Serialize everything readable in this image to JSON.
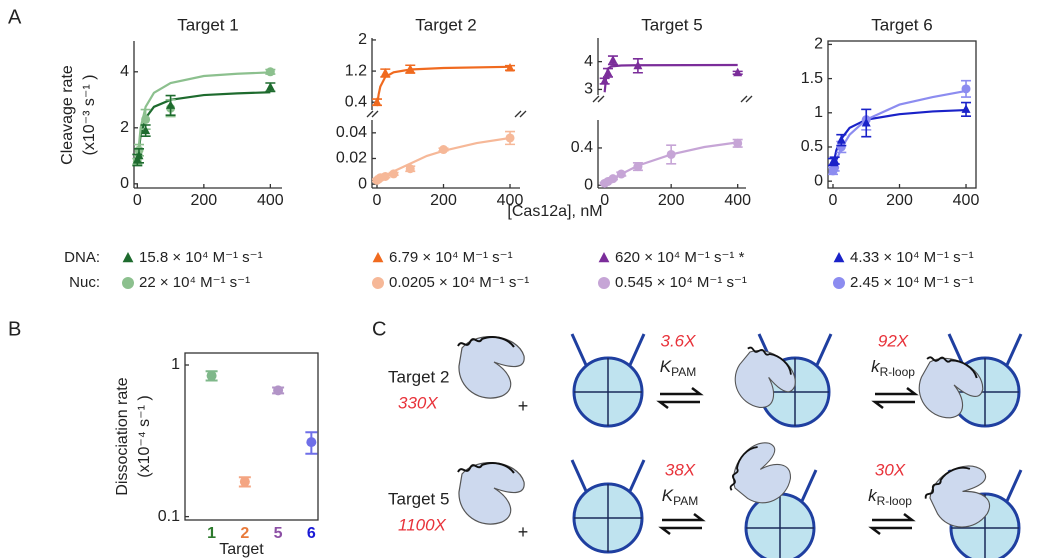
{
  "panel_a": {
    "letter": "A",
    "y_label": [
      "Cleavage rate",
      "(x10⁻³ s⁻¹ )"
    ],
    "x_label": "[Cas12a], nM"
  },
  "chart_data": [
    {
      "type": "scatter",
      "title": "Target 1",
      "xlim": [
        -10,
        435
      ],
      "ylim": [
        -0.15,
        5.1
      ],
      "xticks": [
        0,
        200,
        400
      ],
      "yticks": [
        0,
        2,
        4
      ],
      "series": [
        {
          "color": "#1e6b2e",
          "line": true,
          "x": [
            0,
            10,
            25,
            50,
            100,
            200,
            300,
            400
          ],
          "values": [
            0.7,
            1.75,
            2.35,
            2.75,
            3.0,
            3.17,
            3.23,
            3.27
          ]
        },
        {
          "color": "#8cc08e",
          "line": true,
          "x": [
            0,
            10,
            25,
            50,
            100,
            200,
            300,
            400
          ],
          "values": [
            0.8,
            2.0,
            2.75,
            3.25,
            3.6,
            3.85,
            3.93,
            3.98
          ]
        },
        {
          "color": "#8cc08e",
          "marker": "circle",
          "x": [
            0,
            5,
            25,
            100,
            400
          ],
          "values": [
            0.8,
            1.2,
            2.3,
            2.7,
            4.0
          ],
          "errors": [
            0.1,
            0.2,
            0.35,
            0.3,
            0.08
          ]
        },
        {
          "color": "#1e6b2e",
          "marker": "triangle",
          "x": [
            0,
            5,
            25,
            100,
            400
          ],
          "values": [
            0.85,
            1.0,
            1.9,
            2.8,
            3.45
          ],
          "errors": [
            0.2,
            0.25,
            0.2,
            0.35,
            0.15
          ]
        }
      ]
    },
    {
      "type": "scatter",
      "title": "Target 2",
      "xlim": [
        -15,
        430
      ],
      "ylim": [
        0.2,
        2.05
      ],
      "yticks": [
        0.4,
        1.2,
        2
      ],
      "series": [
        {
          "color": "#f06a1f",
          "line": true,
          "x": [
            0,
            5,
            10,
            25,
            50,
            100,
            200,
            400
          ],
          "values": [
            0.3,
            0.6,
            0.8,
            1.05,
            1.17,
            1.24,
            1.28,
            1.31
          ]
        },
        {
          "color": "#f06a1f",
          "marker": "triangle",
          "x": [
            0,
            25,
            100,
            400
          ],
          "values": [
            0.4,
            1.15,
            1.25,
            1.28
          ],
          "errors": [
            0.08,
            0.1,
            0.1,
            0.06
          ]
        }
      ]
    },
    {
      "type": "scatter",
      "xlim": [
        -15,
        430
      ],
      "ylim": [
        -0.003,
        0.05
      ],
      "xticks": [
        0,
        200,
        400
      ],
      "yticks": [
        0,
        0.02,
        0.04
      ],
      "series": [
        {
          "color": "#f6b898",
          "line": true,
          "x": [
            0,
            50,
            100,
            150,
            200,
            300,
            400
          ],
          "values": [
            0.003,
            0.01,
            0.016,
            0.022,
            0.026,
            0.032,
            0.036
          ]
        },
        {
          "color": "#f6b898",
          "marker": "circle",
          "x": [
            0,
            5,
            10,
            25,
            50,
            100,
            200,
            400
          ],
          "values": [
            0.003,
            0.004,
            0.005,
            0.006,
            0.008,
            0.012,
            0.027,
            0.036
          ],
          "errors": [
            0.001,
            0.001,
            0.001,
            0.001,
            0.001,
            0.002,
            0.001,
            0.005
          ]
        }
      ]
    },
    {
      "type": "scatter",
      "title": "Target 5",
      "xlim": [
        -20,
        425
      ],
      "ylim": [
        2.8,
        4.85
      ],
      "yticks": [
        3,
        4
      ],
      "series": [
        {
          "color": "#7b2d9a",
          "line": true,
          "x": [
            0,
            5,
            10,
            20,
            50,
            100,
            400
          ],
          "values": [
            2.9,
            3.5,
            3.75,
            3.83,
            3.86,
            3.87,
            3.88
          ]
        },
        {
          "color": "#7b2d9a",
          "marker": "triangle",
          "x": [
            0,
            10,
            25,
            100,
            400
          ],
          "values": [
            3.3,
            3.6,
            4.05,
            3.85,
            3.6
          ],
          "errors": [
            0.1,
            0.15,
            0.15,
            0.25,
            0.05
          ]
        }
      ]
    },
    {
      "type": "scatter",
      "xlim": [
        -20,
        425
      ],
      "ylim": [
        -0.03,
        0.7
      ],
      "xticks": [
        0,
        200,
        400
      ],
      "yticks": [
        0,
        0.4
      ],
      "series": [
        {
          "color": "#c6a5d6",
          "line": true,
          "x": [
            0,
            50,
            100,
            200,
            300,
            400
          ],
          "values": [
            0.01,
            0.12,
            0.21,
            0.33,
            0.41,
            0.46
          ]
        },
        {
          "color": "#c6a5d6",
          "marker": "circle",
          "x": [
            0,
            10,
            25,
            50,
            100,
            200,
            400
          ],
          "values": [
            0.02,
            0.04,
            0.07,
            0.12,
            0.2,
            0.33,
            0.45
          ],
          "errors": [
            0.01,
            0.01,
            0.01,
            0.02,
            0.04,
            0.1,
            0.04
          ]
        }
      ]
    },
    {
      "type": "scatter",
      "title": "Target 6",
      "xlim": [
        -15,
        430
      ],
      "ylim": [
        -0.1,
        2.05
      ],
      "xticks": [
        0,
        200,
        400
      ],
      "yticks": [
        0,
        0.5,
        1,
        1.5,
        2
      ],
      "series": [
        {
          "color": "#1a22c8",
          "line": true,
          "x": [
            0,
            10,
            25,
            50,
            100,
            200,
            300,
            400
          ],
          "values": [
            0.22,
            0.45,
            0.62,
            0.78,
            0.9,
            0.98,
            1.02,
            1.04
          ]
        },
        {
          "color": "#8c8cf0",
          "line": true,
          "x": [
            0,
            10,
            25,
            50,
            100,
            200,
            300,
            400
          ],
          "values": [
            0.12,
            0.3,
            0.48,
            0.68,
            0.9,
            1.12,
            1.23,
            1.32
          ]
        },
        {
          "color": "#8c8cf0",
          "marker": "circle",
          "x": [
            0,
            5,
            25,
            100,
            400
          ],
          "values": [
            0.15,
            0.2,
            0.5,
            0.9,
            1.35
          ],
          "errors": [
            0.05,
            0.05,
            0.08,
            0.15,
            0.12
          ]
        },
        {
          "color": "#1a22c8",
          "marker": "triangle",
          "x": [
            0,
            5,
            25,
            100,
            400
          ],
          "values": [
            0.28,
            0.3,
            0.6,
            0.85,
            1.05
          ],
          "errors": [
            0.05,
            0.05,
            0.08,
            0.2,
            0.1
          ]
        }
      ]
    },
    {
      "type": "scatter",
      "letter": "B",
      "y_label": [
        "Dissociation rate",
        "(x10⁻⁴ s⁻¹ )"
      ],
      "x_label": "Target",
      "log_scale": true,
      "ylim": [
        0.095,
        1.2
      ],
      "yticks": [
        0.1,
        1
      ],
      "categories": [
        "1",
        "2",
        "5",
        "6"
      ],
      "label_colors": [
        "#2d7a2d",
        "#e87a3a",
        "#8c4fa5",
        "#1a1ad6"
      ],
      "colors": [
        "#7fb88a",
        "#f4a582",
        "#b294c7",
        "#6f6fe8"
      ],
      "values": [
        0.85,
        0.17,
        0.68,
        0.31
      ],
      "errors": [
        0.06,
        0.012,
        0.03,
        0.05
      ]
    }
  ],
  "rate_legend": {
    "rows": [
      {
        "label": "DNA:",
        "marker": "triangle",
        "colors": [
          "#1e6b2e",
          "#f06a1f",
          "#7b2d9a",
          "#1a22c8"
        ],
        "entries": [
          "15.8 × 10⁴ M⁻¹ s⁻¹",
          "6.79 × 10⁴ M⁻¹ s⁻¹",
          "620 × 10⁴ M⁻¹ s⁻¹ *",
          "4.33 × 10⁴ M⁻¹ s⁻¹"
        ]
      },
      {
        "label": "Nuc:",
        "marker": "circle",
        "colors": [
          "#8cc08e",
          "#f6b898",
          "#c6a5d6",
          "#8c8cf0"
        ],
        "entries": [
          "22 × 10⁴ M⁻¹ s⁻¹",
          "0.0205 × 10⁴ M⁻¹ s⁻¹",
          "0.545 × 10⁴ M⁻¹ s⁻¹",
          "2.45 × 10⁴ M⁻¹ s⁻¹"
        ]
      }
    ]
  },
  "diagram": {
    "letter": "C",
    "plus": "+",
    "rows": [
      {
        "target": "Target 2",
        "fold": "330X",
        "steps": [
          {
            "fold": "3.6X",
            "symbol": "K",
            "subscript": "PAM"
          },
          {
            "fold": "92X",
            "symbol": "k",
            "subscript": "R-loop"
          }
        ]
      },
      {
        "target": "Target 5",
        "fold": "1100X",
        "steps": [
          {
            "fold": "38X",
            "symbol": "K",
            "subscript": "PAM"
          },
          {
            "fold": "30X",
            "symbol": "k",
            "subscript": "R-loop"
          }
        ]
      }
    ]
  }
}
